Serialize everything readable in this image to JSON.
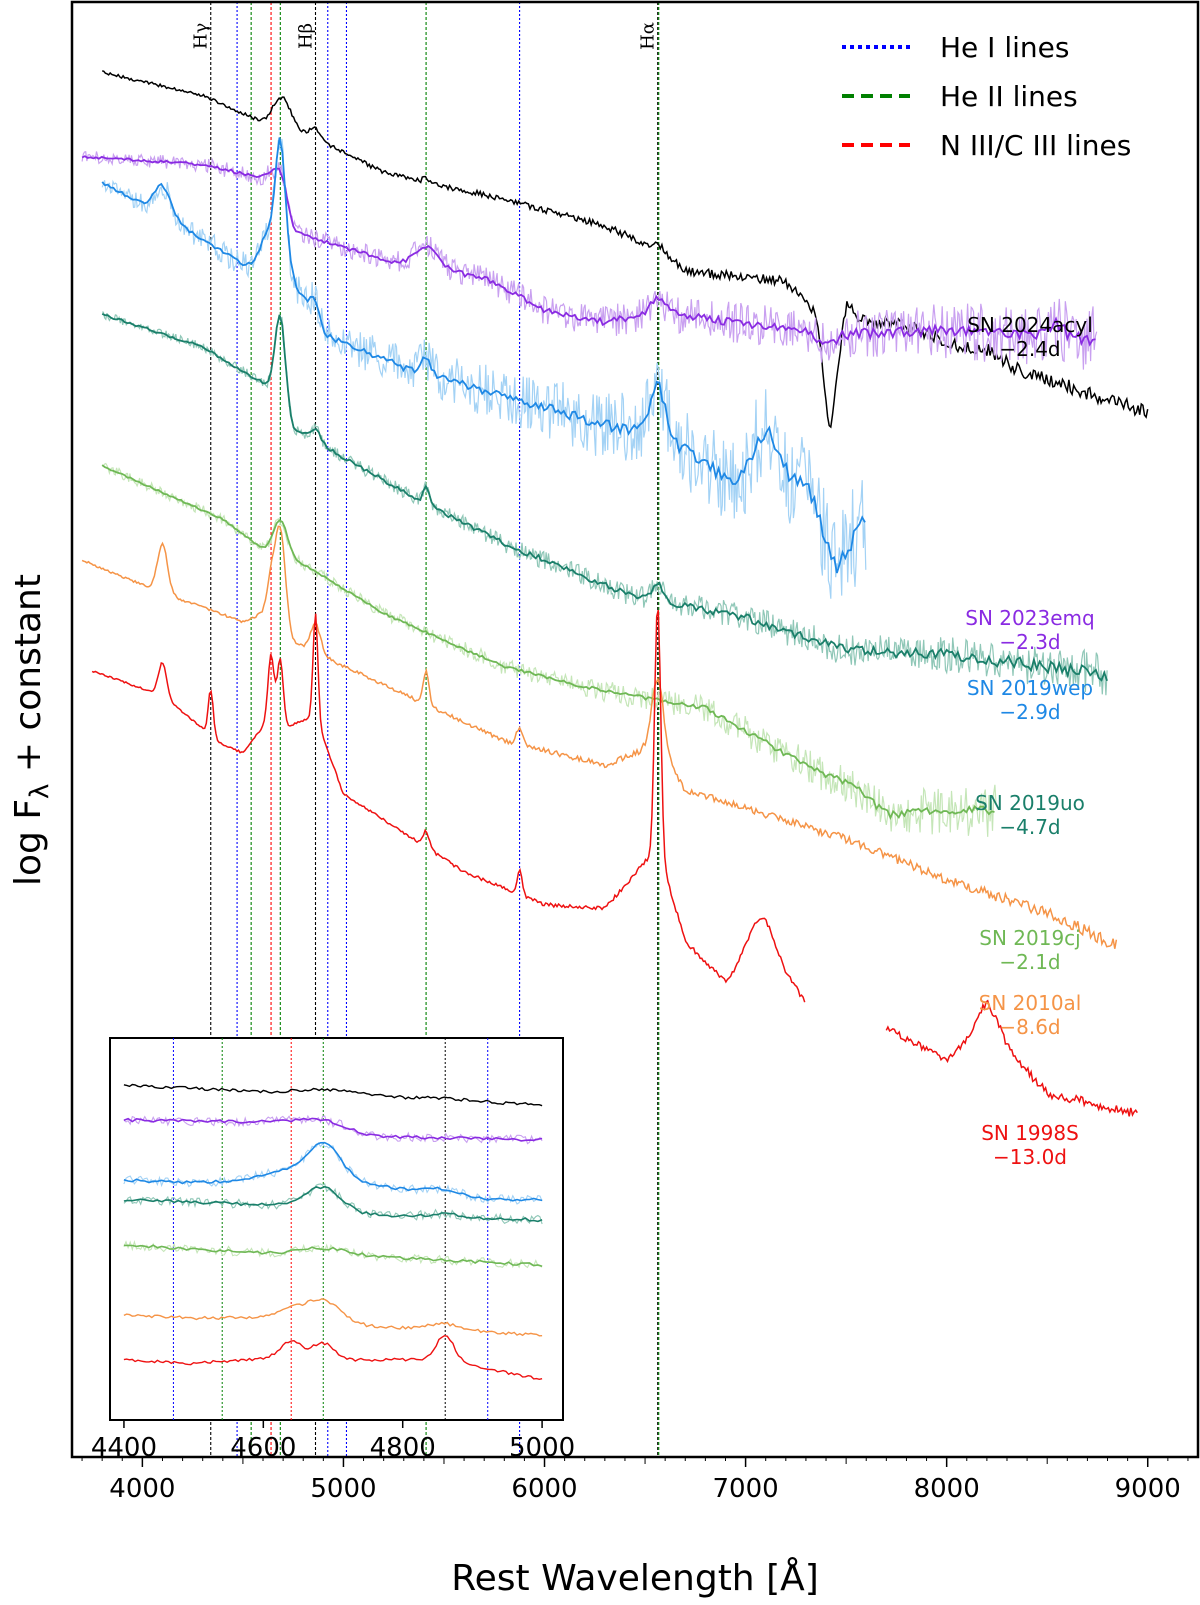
{
  "chart_data": {
    "type": "line",
    "xlabel": "Rest Wavelength [Å]",
    "ylabel": "log F",
    "ylabel_sub": "λ",
    "ylabel_suffix": " + constant",
    "xlim": [
      3650,
      9250
    ],
    "xticks": [
      4000,
      5000,
      6000,
      7000,
      8000,
      9000
    ],
    "legend": {
      "placement": "top-right",
      "entries": [
        {
          "label": "He I lines",
          "color": "#0000ff",
          "style": "dotted"
        },
        {
          "label": "He II lines",
          "color": "#008000",
          "style": "dashed"
        },
        {
          "label": "N III/C III lines",
          "color": "#ff0000",
          "style": "dashed"
        }
      ]
    },
    "reference_lines": [
      {
        "x": 4340,
        "kind": "H",
        "color": "#000000",
        "label": "Hγ"
      },
      {
        "x": 4471,
        "kind": "He I",
        "color": "#0000ff"
      },
      {
        "x": 4541,
        "kind": "He II",
        "color": "#008000"
      },
      {
        "x": 4640,
        "kind": "N III/C III",
        "color": "#ff0000"
      },
      {
        "x": 4686,
        "kind": "He II",
        "color": "#008000"
      },
      {
        "x": 4861,
        "kind": "H",
        "color": "#000000",
        "label": "Hβ"
      },
      {
        "x": 4922,
        "kind": "He I",
        "color": "#0000ff"
      },
      {
        "x": 5015,
        "kind": "He I",
        "color": "#0000ff"
      },
      {
        "x": 5411,
        "kind": "He II",
        "color": "#008000"
      },
      {
        "x": 5876,
        "kind": "He I",
        "color": "#0000ff"
      },
      {
        "x": 6563,
        "kind": "H",
        "color": "#000000",
        "label": "Hα"
      },
      {
        "x": 6563,
        "kind": "He II",
        "color": "#008000"
      }
    ],
    "series": [
      {
        "name": "SN 2024acyl",
        "phase": "−2.4d",
        "color": "#000000",
        "light_color": "#000000",
        "x_range": [
          3800,
          9000
        ],
        "anchors": [
          [
            3800,
            0.3
          ],
          [
            4300,
            0.86
          ],
          [
            4680,
            1.7
          ],
          [
            4720,
            1.55
          ],
          [
            5200,
            2.75
          ],
          [
            5800,
            3.4
          ],
          [
            6300,
            4.05
          ],
          [
            6563,
            4.6
          ],
          [
            6700,
            5.15
          ],
          [
            7200,
            5.4
          ],
          [
            7350,
            6.15
          ],
          [
            7420,
            9.05
          ],
          [
            7500,
            5.8
          ],
          [
            8000,
            6.9
          ],
          [
            8500,
            7.8
          ],
          [
            9000,
            8.6
          ]
        ],
        "features": [
          [
            4686,
            -0.75,
            40
          ],
          [
            4861,
            -0.25,
            25
          ],
          [
            5411,
            -0.12,
            15
          ],
          [
            6563,
            -0.15,
            20
          ],
          [
            7600,
            0.35,
            80
          ],
          [
            8200,
            -0.2,
            60
          ]
        ],
        "noise": 0.1,
        "noise_light": 0,
        "noise_exp": 1.5,
        "smooth": false
      },
      {
        "name": "SN 2023emq",
        "phase": "−2.3d",
        "color": "#8a2be2",
        "light_color": "#c9a0f0",
        "x_range": [
          3700,
          8750
        ],
        "anchors": [
          [
            3700,
            2.35
          ],
          [
            4300,
            2.55
          ],
          [
            4620,
            2.9
          ],
          [
            4750,
            4.2
          ],
          [
            5300,
            5.0
          ],
          [
            5700,
            5.3
          ],
          [
            6000,
            6.1
          ],
          [
            6300,
            6.4
          ],
          [
            6563,
            6.15
          ],
          [
            6800,
            6.3
          ],
          [
            7400,
            6.7
          ],
          [
            8000,
            6.6
          ],
          [
            8750,
            6.8
          ]
        ],
        "features": [
          [
            4686,
            -0.85,
            35
          ],
          [
            5411,
            -0.55,
            60
          ],
          [
            6563,
            -0.35,
            35
          ],
          [
            7400,
            0.3,
            40
          ],
          [
            8542,
            -0.3,
            40
          ]
        ],
        "noise": 0.14,
        "noise_light": 0.42,
        "noise_exp": 1.5,
        "smooth": true
      },
      {
        "name": "SN 2019wep",
        "phase": "−2.9d",
        "color": "#1e88e5",
        "light_color": "#a3d2f5",
        "x_range": [
          3800,
          7600
        ],
        "anchors": [
          [
            3800,
            3.0
          ],
          [
            4150,
            3.9
          ],
          [
            4500,
            5.0
          ],
          [
            4686,
            4.8
          ],
          [
            4900,
            6.7
          ],
          [
            5300,
            7.5
          ],
          [
            5800,
            8.2
          ],
          [
            6300,
            8.9
          ],
          [
            6600,
            9.2
          ],
          [
            6900,
            10.2
          ],
          [
            7100,
            10.4
          ],
          [
            7300,
            10.2
          ],
          [
            7450,
            12.4
          ],
          [
            7600,
            11.2
          ]
        ],
        "features": [
          [
            4100,
            -0.7,
            40
          ],
          [
            4620,
            -0.6,
            30
          ],
          [
            4686,
            -2.9,
            25
          ],
          [
            4861,
            -0.5,
            25
          ],
          [
            5411,
            -0.4,
            25
          ],
          [
            6563,
            -1.2,
            35
          ],
          [
            7100,
            -1.3,
            60
          ]
        ],
        "noise": 0.18,
        "noise_light": 0.7,
        "noise_exp": 1.5,
        "smooth": true
      },
      {
        "name": "SN 2019uo",
        "phase": "−4.7d",
        "color": "#1a7f6a",
        "light_color": "#8fc7b7",
        "x_range": [
          3800,
          8800
        ],
        "anchors": [
          [
            3800,
            6.2
          ],
          [
            4300,
            7.0
          ],
          [
            4640,
            8.0
          ],
          [
            4750,
            9.0
          ],
          [
            5400,
            10.8
          ],
          [
            5800,
            11.8
          ],
          [
            6400,
            13.0
          ],
          [
            7000,
            13.6
          ],
          [
            7500,
            14.4
          ],
          [
            8000,
            14.5
          ],
          [
            8500,
            14.8
          ],
          [
            8800,
            15.0
          ]
        ],
        "features": [
          [
            4686,
            -2.2,
            25
          ],
          [
            4861,
            -0.3,
            25
          ],
          [
            5411,
            -0.4,
            15
          ],
          [
            6563,
            -0.4,
            25
          ]
        ],
        "noise": 0.14,
        "noise_light": 0.28,
        "noise_exp": 1.5,
        "smooth": true
      },
      {
        "name": "SN 2019cj",
        "phase": "−2.1d",
        "color": "#6fb855",
        "light_color": "#c5e6b8",
        "x_range": [
          3800,
          8250
        ],
        "anchors": [
          [
            3800,
            9.9
          ],
          [
            4400,
            11.2
          ],
          [
            4620,
            12.0
          ],
          [
            4800,
            12.3
          ],
          [
            5200,
            13.5
          ],
          [
            5800,
            14.8
          ],
          [
            6300,
            15.4
          ],
          [
            6800,
            15.8
          ],
          [
            7300,
            17.2
          ],
          [
            7800,
            18.3
          ],
          [
            8250,
            18.3
          ]
        ],
        "features": [
          [
            4686,
            -0.9,
            35
          ],
          [
            7700,
            0.3,
            60
          ]
        ],
        "noise": 0.1,
        "noise_light": 0.35,
        "noise_exp": 2.5,
        "smooth": true
      },
      {
        "name": "SN 2010al",
        "phase": "−8.6d",
        "color": "#f59447",
        "light_color": "#f59447",
        "x_range": [
          3700,
          8850
        ],
        "anchors": [
          [
            3700,
            12.2
          ],
          [
            4100,
            13.0
          ],
          [
            4500,
            13.7
          ],
          [
            4640,
            13.4
          ],
          [
            4750,
            14.2
          ],
          [
            5400,
            15.7
          ],
          [
            5800,
            16.6
          ],
          [
            6300,
            17.2
          ],
          [
            6563,
            16.7
          ],
          [
            6700,
            17.8
          ],
          [
            7500,
            19.0
          ],
          [
            8000,
            20.0
          ],
          [
            8500,
            20.8
          ],
          [
            8850,
            21.6
          ]
        ],
        "features": [
          [
            4100,
            -1.2,
            25
          ],
          [
            4640,
            -0.7,
            20
          ],
          [
            4686,
            -2.3,
            25
          ],
          [
            4861,
            -0.7,
            25
          ],
          [
            5411,
            -0.8,
            15
          ],
          [
            5876,
            -0.4,
            15
          ],
          [
            6563,
            -1.6,
            30
          ]
        ],
        "noise": 0.08,
        "noise_light": 0,
        "noise_exp": 1.8,
        "smooth": false
      },
      {
        "name": "SN 1998S",
        "phase": "−13.0d",
        "color": "#ee1111",
        "light_color": "#ee1111",
        "x_range": [
          3750,
          8950
        ],
        "anchors": [
          [
            3750,
            14.9
          ],
          [
            4100,
            15.5
          ],
          [
            4400,
            16.7
          ],
          [
            4500,
            16.9
          ],
          [
            4640,
            16.0
          ],
          [
            4700,
            16.3
          ],
          [
            4861,
            16.0
          ],
          [
            5000,
            17.9
          ],
          [
            5600,
            19.8
          ],
          [
            6000,
            20.6
          ],
          [
            6300,
            20.7
          ],
          [
            6563,
            19.2
          ],
          [
            6700,
            21.5
          ],
          [
            6900,
            22.5
          ],
          [
            7100,
            21.5
          ],
          [
            7300,
            23.0
          ]
        ],
        "anchors2": [
          [
            7700,
            23.6
          ],
          [
            8000,
            24.4
          ],
          [
            8200,
            23.6
          ],
          [
            8500,
            25.2
          ],
          [
            8950,
            25.7
          ]
        ],
        "features": [
          [
            4100,
            -0.8,
            20
          ],
          [
            4340,
            -1.1,
            12
          ],
          [
            4640,
            -1.5,
            15
          ],
          [
            4686,
            -1.6,
            15
          ],
          [
            4861,
            -2.5,
            12
          ],
          [
            5411,
            -0.4,
            15
          ],
          [
            5876,
            -0.6,
            12
          ],
          [
            6563,
            -6.0,
            15
          ],
          [
            7060,
            -0.7,
            60
          ],
          [
            8200,
            -0.6,
            60
          ]
        ],
        "noise": 0.06,
        "noise_light": 0,
        "noise_exp": 1.8,
        "smooth": false
      }
    ],
    "inset": {
      "xlim": [
        4380,
        5030
      ],
      "xticks": [
        4400,
        4600,
        4800,
        5000
      ],
      "reference_lines": [
        {
          "x": 4471,
          "color": "#0000ff"
        },
        {
          "x": 4541,
          "color": "#008000"
        },
        {
          "x": 4640,
          "color": "#ff0000"
        },
        {
          "x": 4686,
          "color": "#008000"
        },
        {
          "x": 4861,
          "color": "#000000"
        },
        {
          "x": 4922,
          "color": "#0000ff"
        }
      ]
    }
  }
}
